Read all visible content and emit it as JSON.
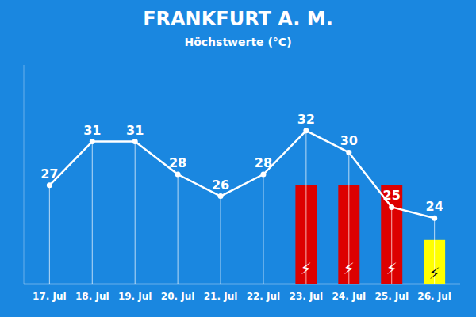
{
  "chart_data": {
    "type": "line",
    "title": "FRANKFURT A. M.",
    "subtitle": "Höchstwerte (°C)",
    "categories": [
      "17. Jul",
      "18. Jul",
      "19. Jul",
      "20. Jul",
      "21. Jul",
      "22. Jul",
      "23. Jul",
      "24. Jul",
      "25. Jul",
      "26. Jul"
    ],
    "series": [
      {
        "type": "line",
        "color": "#ffffff",
        "marker": "circle",
        "data_labels": true,
        "values": [
          27,
          31,
          31,
          28,
          26,
          28,
          32,
          30,
          25,
          24
        ]
      },
      {
        "type": "bar",
        "color": "#dd0000",
        "values": [
          null,
          null,
          null,
          null,
          null,
          null,
          27,
          27,
          27,
          null
        ]
      },
      {
        "type": "bar",
        "color": "#ffff00",
        "values": [
          null,
          null,
          null,
          null,
          null,
          null,
          null,
          null,
          null,
          22
        ]
      }
    ],
    "annotations": [
      {
        "text": "⚡",
        "x": "23. Jul"
      },
      {
        "text": "⚡",
        "x": "24. Jul"
      },
      {
        "text": "⚡",
        "x": "25. Jul"
      },
      {
        "text": "⚡",
        "x": "26. Jul"
      }
    ],
    "ylim": [
      18,
      38
    ],
    "grid": false,
    "tick_labels": "x"
  }
}
